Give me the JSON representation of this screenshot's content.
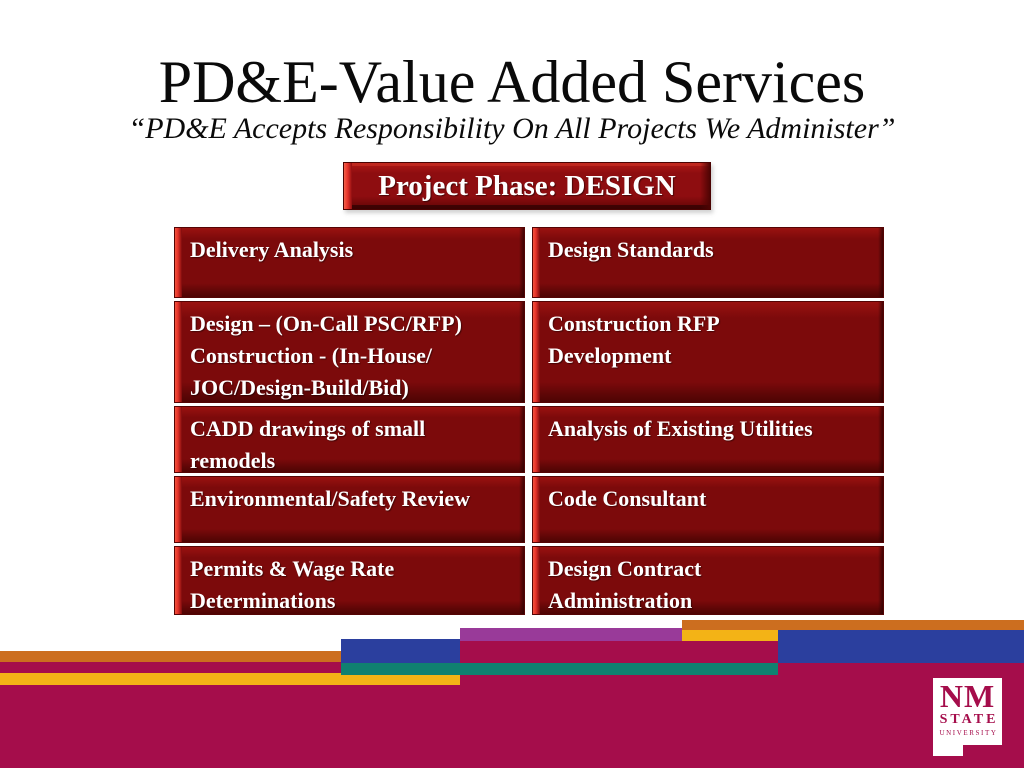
{
  "slide": {
    "title": "PD&E-Value Added Services",
    "subtitle": "“PD&E Accepts Responsibility On All Projects We Administer”",
    "phase_banner": "Project Phase: DESIGN"
  },
  "services_table": {
    "rows": [
      {
        "left": "Delivery Analysis",
        "right": "Design Standards"
      },
      {
        "left": "Design – (On-Call PSC/RFP)\nConstruction - (In-House/\nJOC/Design-Build/Bid)",
        "right": "Construction RFP\nDevelopment"
      },
      {
        "left": "CADD drawings of small\nremodels",
        "right": "Analysis of Existing Utilities"
      },
      {
        "left": "Environmental/Safety Review",
        "right": "Code Consultant"
      },
      {
        "left": "Permits & Wage Rate\nDeterminations",
        "right": "Design Contract\nAdministration"
      }
    ]
  },
  "logo": {
    "line1": "NM",
    "line2": "STATE",
    "line3": "UNIVERSITY"
  },
  "colors": {
    "title_black": "#0a0a0a",
    "text_white": "#ffffff",
    "cell_red_dark": "#7c0a0b",
    "cell_red_light": "#9a1210",
    "bevel_bright_red": "#e6332a",
    "bevel_dark_red": "#4e0403",
    "banner_red": "#8e0d10",
    "footer_crimson": "#a50d4b",
    "footer_orange": "#cc6e1f",
    "footer_gold": "#f3b316",
    "footer_purple": "#993a99",
    "footer_blue": "#2b3f9e",
    "footer_teal": "#108070"
  }
}
